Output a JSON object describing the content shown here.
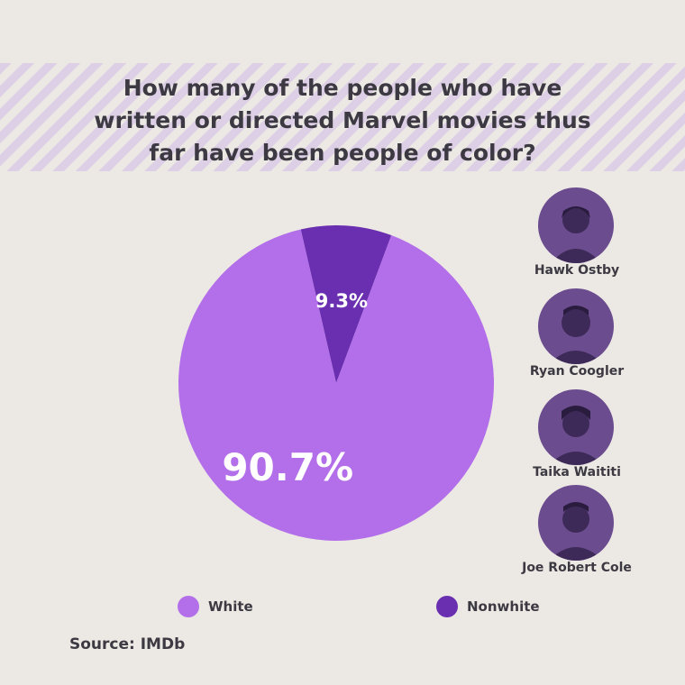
{
  "title_lines": [
    "How many of the people who have",
    "written or directed Marvel movies thus",
    "far have been people of color?"
  ],
  "chart_data": {
    "type": "pie",
    "slices": [
      {
        "name": "White",
        "value": 90.7,
        "label": "90.7%",
        "color": "#b36ee9"
      },
      {
        "name": "Nonwhite",
        "value": 9.3,
        "label": "9.3%",
        "color": "#6a2fb0"
      }
    ],
    "legend": "bottom"
  },
  "legend": [
    {
      "label": "White",
      "color": "#b36ee9"
    },
    {
      "label": "Nonwhite",
      "color": "#6a2fb0"
    }
  ],
  "people": [
    {
      "name": "Hawk Ostby"
    },
    {
      "name": "Ryan Coogler"
    },
    {
      "name": "Taika Waititi"
    },
    {
      "name": "Joe Robert Cole"
    }
  ],
  "source": "Source: IMDb"
}
